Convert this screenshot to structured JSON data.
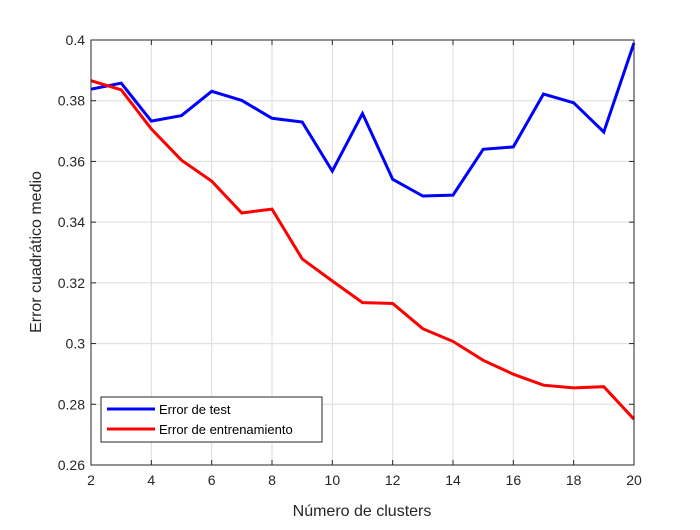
{
  "chart_data": {
    "type": "line",
    "title": "",
    "xlabel": "Número de clusters",
    "ylabel": "Error cuadrático medio",
    "xlim": [
      2,
      20
    ],
    "ylim": [
      0.26,
      0.4
    ],
    "xticks": [
      2,
      4,
      6,
      8,
      10,
      12,
      14,
      16,
      18,
      20
    ],
    "yticks": [
      0.26,
      0.28,
      0.3,
      0.32,
      0.34,
      0.36,
      0.38,
      0.4
    ],
    "xtick_labels": [
      "2",
      "4",
      "6",
      "8",
      "10",
      "12",
      "14",
      "16",
      "18",
      "20"
    ],
    "ytick_labels": [
      "0.26",
      "0.28",
      "0.3",
      "0.32",
      "0.34",
      "0.36",
      "0.38",
      "0.4"
    ],
    "grid": true,
    "legend_position": "bottom-left",
    "x": [
      2,
      3,
      4,
      5,
      6,
      7,
      8,
      9,
      10,
      11,
      12,
      13,
      14,
      15,
      16,
      17,
      18,
      19,
      20
    ],
    "series": [
      {
        "name": "Error de test",
        "color": "#0000ff",
        "values": [
          0.3838,
          0.3858,
          0.3733,
          0.3751,
          0.3831,
          0.3801,
          0.3742,
          0.373,
          0.3568,
          0.3758,
          0.3541,
          0.3486,
          0.3489,
          0.364,
          0.3648,
          0.3822,
          0.3793,
          0.3697,
          0.399
        ]
      },
      {
        "name": "Error de entrenamiento",
        "color": "#ff0000",
        "values": [
          0.3866,
          0.3836,
          0.3707,
          0.3604,
          0.3535,
          0.343,
          0.3443,
          0.3279,
          0.3206,
          0.3135,
          0.3132,
          0.3049,
          0.3007,
          0.2945,
          0.2899,
          0.2863,
          0.2854,
          0.2858,
          0.2751
        ]
      }
    ]
  }
}
